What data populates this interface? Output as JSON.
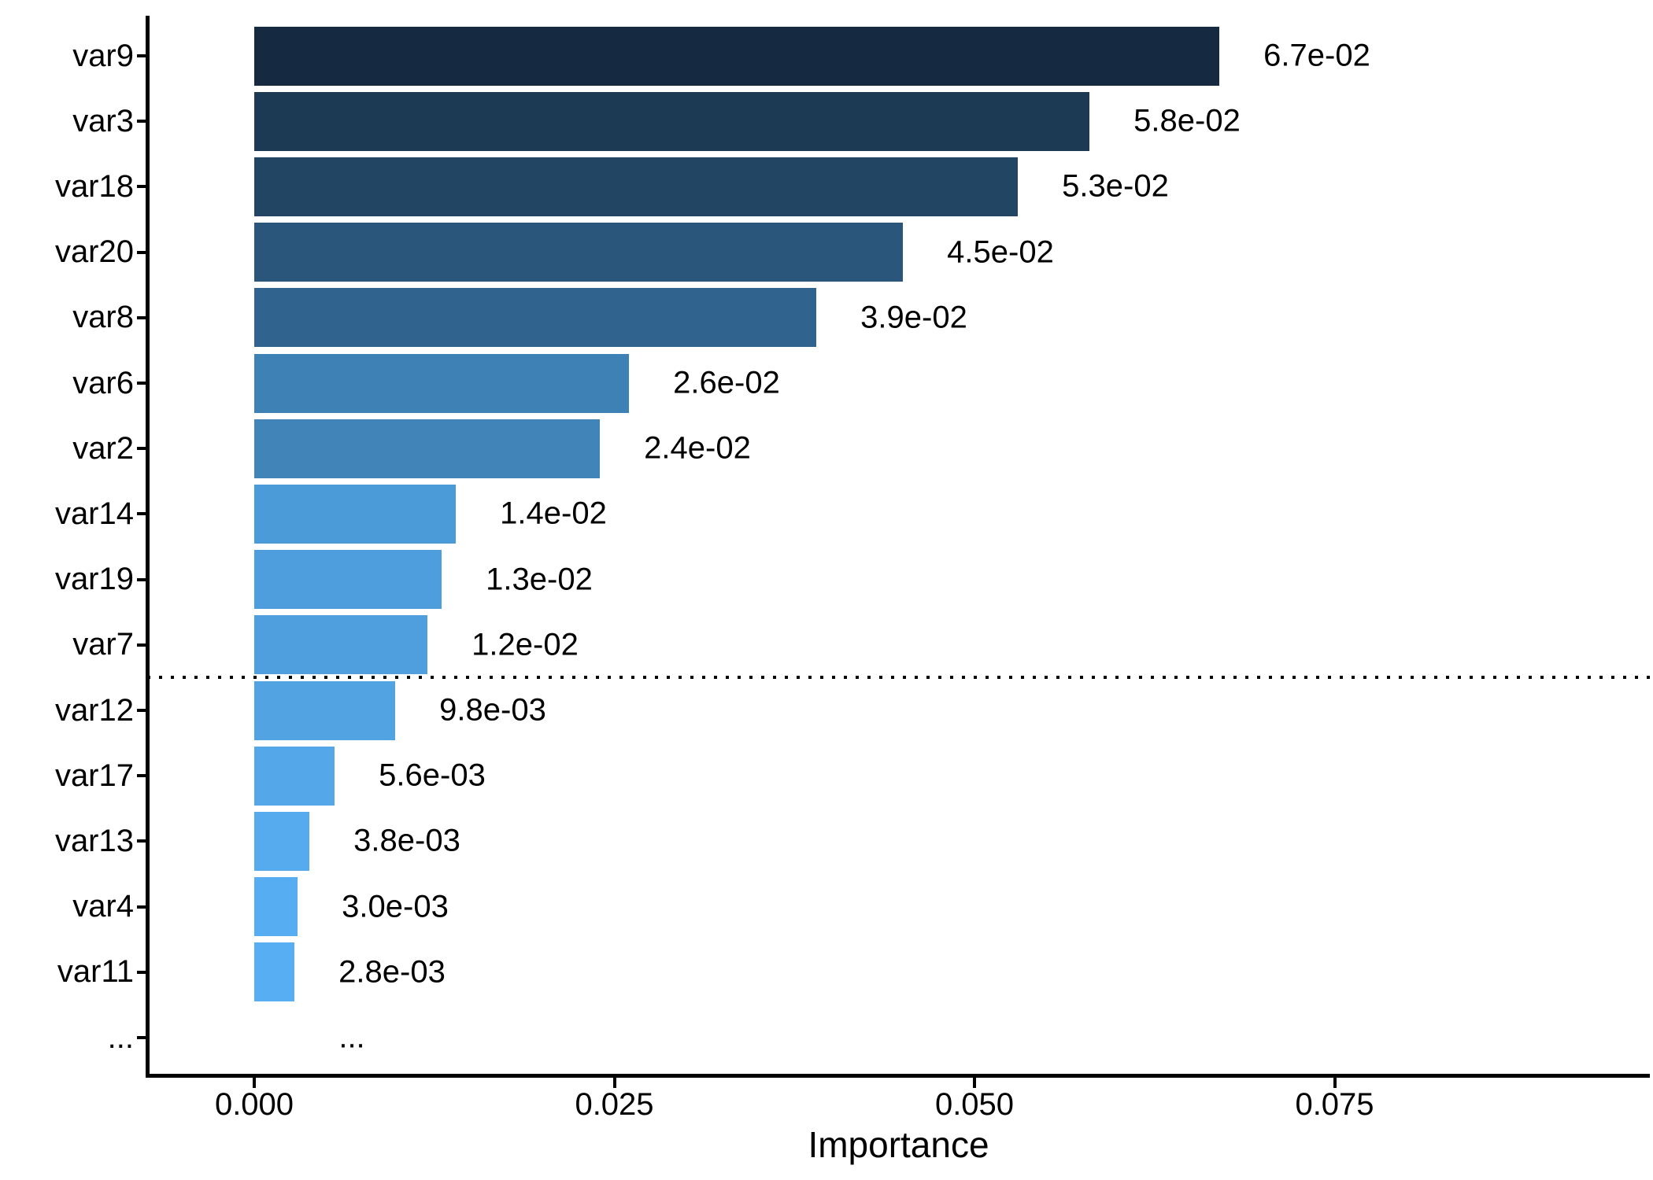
{
  "chart_data": {
    "type": "bar",
    "orientation": "horizontal",
    "title": "",
    "xlabel": "Importance",
    "ylabel": "",
    "categories": [
      "var9",
      "var3",
      "var18",
      "var20",
      "var8",
      "var6",
      "var2",
      "var14",
      "var19",
      "var7",
      "var12",
      "var17",
      "var13",
      "var4",
      "var11",
      "..."
    ],
    "values": [
      0.067,
      0.058,
      0.053,
      0.045,
      0.039,
      0.026,
      0.024,
      0.014,
      0.013,
      0.012,
      0.0098,
      0.0056,
      0.0038,
      0.003,
      0.0028,
      null
    ],
    "value_labels": [
      "6.7e-02",
      "5.8e-02",
      "5.3e-02",
      "4.5e-02",
      "3.9e-02",
      "2.6e-02",
      "2.4e-02",
      "1.4e-02",
      "1.3e-02",
      "1.2e-02",
      "9.8e-03",
      "5.6e-03",
      "3.8e-03",
      "3.0e-03",
      "2.8e-03",
      "..."
    ],
    "bar_colors": [
      "#152A40",
      "#1D3A55",
      "#224563",
      "#2A567C",
      "#30648F",
      "#3E81B4",
      "#4084B8",
      "#4C9BD9",
      "#4E9DDC",
      "#4F9FDE",
      "#51A3E2",
      "#54A8E9",
      "#56ABEE",
      "#57ADF1",
      "#58AEF2",
      null
    ],
    "x_ticks": {
      "labels": [
        "0.000",
        "0.025",
        "0.050",
        "0.075"
      ],
      "values": [
        0,
        0.025,
        0.05,
        0.075
      ]
    },
    "xlim": [
      -0.0074,
      0.0969
    ],
    "grid": "off",
    "legend": "none",
    "cutoff_line": {
      "style": "dotted",
      "color": "#000000",
      "between": [
        "var7",
        "var12"
      ]
    },
    "axis_color": "#000000",
    "text_color": "#000000",
    "background": "#FFFFFF"
  }
}
